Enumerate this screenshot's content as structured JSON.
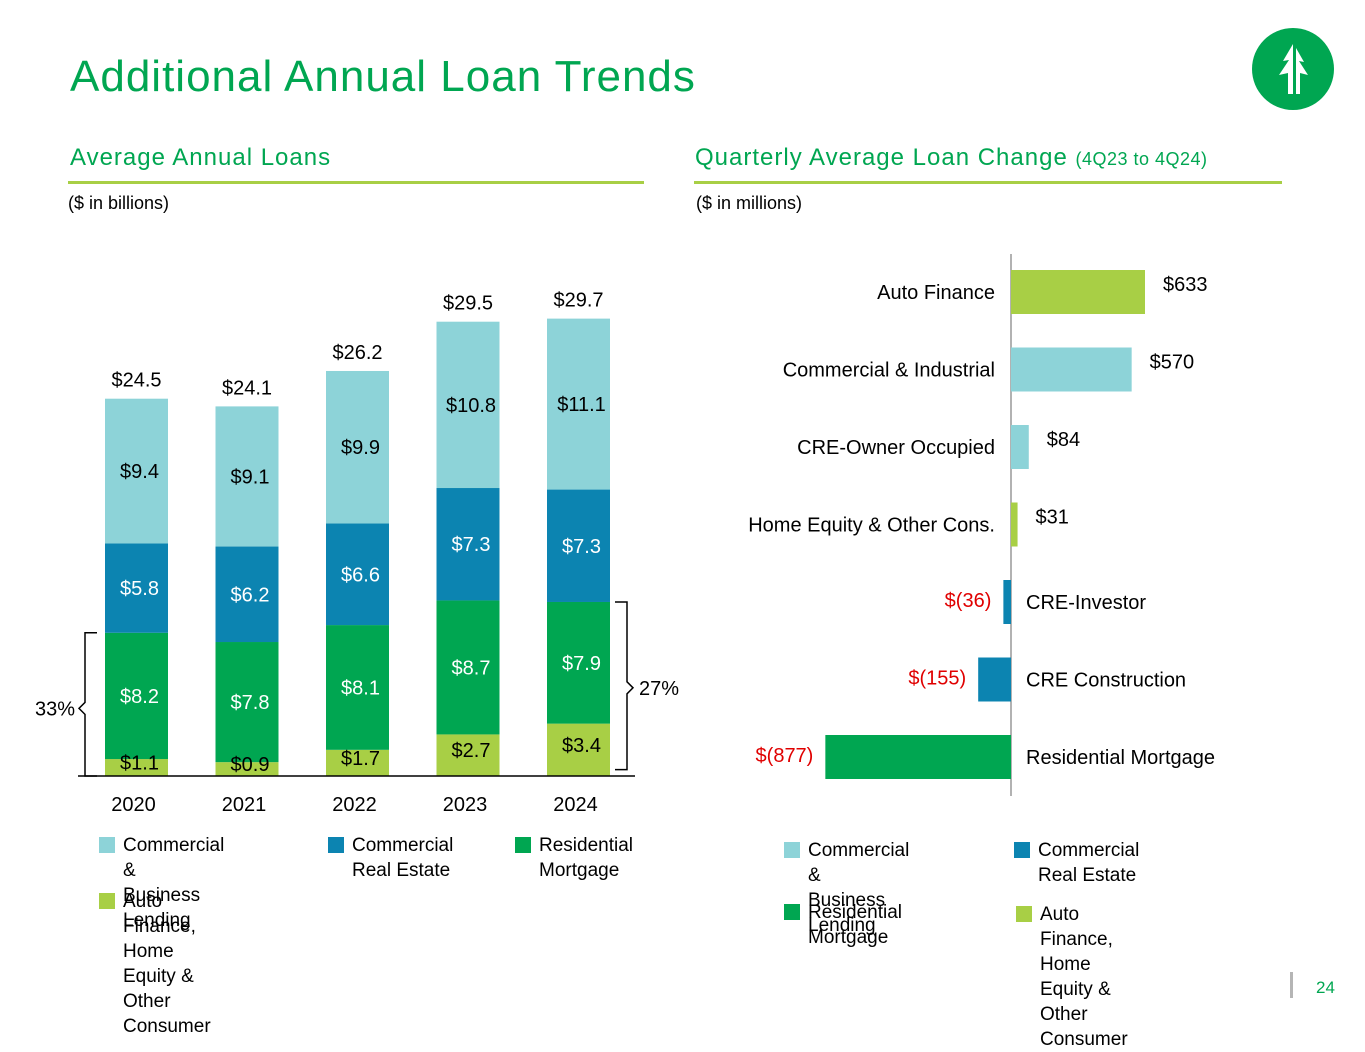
{
  "title": "Additional Annual Loan Trends",
  "page_number": "24",
  "colors": {
    "brand_green": "#00A651",
    "commercial_business": "#8DD3D8",
    "commercial_real_estate": "#0C84B1",
    "residential_mortgage": "#00A651",
    "auto_finance": "#A8CF45",
    "negative_label": "#E00000"
  },
  "left_section": {
    "title": "Average Annual Loans",
    "units": "($ in billions)",
    "legend": [
      {
        "label": "Commercial &\nBusiness Lending",
        "color": "#8DD3D8"
      },
      {
        "label": "Commercial\nReal Estate",
        "color": "#0C84B1"
      },
      {
        "label": "Residential\nMortgage",
        "color": "#00A651"
      },
      {
        "label": "Auto Finance, Home\nEquity & Other Consumer",
        "color": "#A8CF45"
      }
    ]
  },
  "right_section": {
    "title": "Quarterly Average Loan Change",
    "title_suffix": "(4Q23 to 4Q24)",
    "units": "($ in millions)",
    "legend": [
      {
        "label": "Commercial &\nBusiness Lending",
        "color": "#8DD3D8"
      },
      {
        "label": "Commercial\nReal Estate",
        "color": "#0C84B1"
      },
      {
        "label": "Residential\nMortgage",
        "color": "#00A651"
      },
      {
        "label": "Auto Finance, Home\nEquity & Other Consumer",
        "color": "#A8CF45"
      }
    ]
  },
  "chart_data": [
    {
      "type": "bar",
      "stacked": true,
      "categories": [
        "2020",
        "2021",
        "2022",
        "2023",
        "2024"
      ],
      "series": [
        {
          "name": "Auto Finance, Home Equity & Other Consumer",
          "color": "#A8CF45",
          "values": [
            1.1,
            0.9,
            1.7,
            2.7,
            3.4
          ],
          "labels": [
            "$1.1",
            "$0.9",
            "$1.7",
            "$2.7",
            "$3.4"
          ]
        },
        {
          "name": "Residential Mortgage",
          "color": "#00A651",
          "values": [
            8.2,
            7.8,
            8.1,
            8.7,
            7.9
          ],
          "labels": [
            "$8.2",
            "$7.8",
            "$8.1",
            "$8.7",
            "$7.9"
          ]
        },
        {
          "name": "Commercial Real Estate",
          "color": "#0C84B1",
          "values": [
            5.8,
            6.2,
            6.6,
            7.3,
            7.3
          ],
          "labels": [
            "$5.8",
            "$6.2",
            "$6.6",
            "$7.3",
            "$7.3"
          ]
        },
        {
          "name": "Commercial & Business Lending",
          "color": "#8DD3D8",
          "values": [
            9.4,
            9.1,
            9.9,
            10.8,
            11.1
          ],
          "labels": [
            "$9.4",
            "$9.1",
            "$9.9",
            "$10.8",
            "$11.1"
          ]
        }
      ],
      "totals": [
        24.5,
        24.1,
        26.2,
        29.5,
        29.7
      ],
      "total_labels": [
        "$24.5",
        "$24.1",
        "$26.2",
        "$29.5",
        "$29.7"
      ],
      "annotations": [
        {
          "category": "2020",
          "text": "33%",
          "side": "left"
        },
        {
          "category": "2024",
          "text": "27%",
          "side": "right"
        }
      ],
      "ylim": [
        0,
        30
      ]
    },
    {
      "type": "bar",
      "orientation": "horizontal",
      "categories": [
        "Auto Finance",
        "Commercial & Industrial",
        "CRE-Owner Occupied",
        "Home Equity & Other Cons.",
        "CRE-Investor",
        "CRE Construction",
        "Residential Mortgage"
      ],
      "values": [
        633,
        570,
        84,
        31,
        -36,
        -155,
        -877
      ],
      "labels": [
        "$633",
        "$570",
        "$84",
        "$31",
        "$(36)",
        "$(155)",
        "$(877)"
      ],
      "colors": [
        "#A8CF45",
        "#8DD3D8",
        "#8DD3D8",
        "#A8CF45",
        "#0C84B1",
        "#0C84B1",
        "#00A651"
      ],
      "xlim": [
        -877,
        633
      ]
    }
  ]
}
